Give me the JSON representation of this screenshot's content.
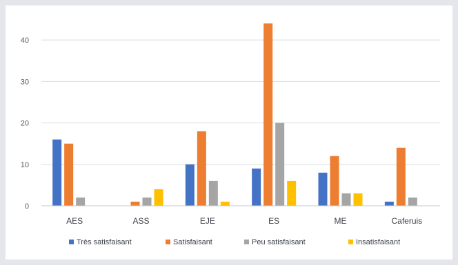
{
  "chart_data": {
    "type": "bar",
    "categories": [
      "AES",
      "ASS",
      "EJE",
      "ES",
      "ME",
      "Caferuis"
    ],
    "series": [
      {
        "name": "Très satisfaisant",
        "color": "#4472c4",
        "values": [
          16,
          0,
          10,
          9,
          8,
          1
        ]
      },
      {
        "name": "Satisfaisant",
        "color": "#ed7d31",
        "values": [
          15,
          1,
          18,
          44,
          12,
          14
        ]
      },
      {
        "name": "Peu satisfaisant",
        "color": "#a5a5a5",
        "values": [
          2,
          2,
          6,
          20,
          3,
          2
        ]
      },
      {
        "name": "Insatisfaisant",
        "color": "#ffc000",
        "values": [
          0,
          4,
          1,
          6,
          3,
          0
        ]
      }
    ],
    "yticks": [
      0,
      10,
      20,
      30,
      40
    ],
    "ylim": [
      0,
      47
    ],
    "grid": true,
    "legend": "bottom"
  }
}
